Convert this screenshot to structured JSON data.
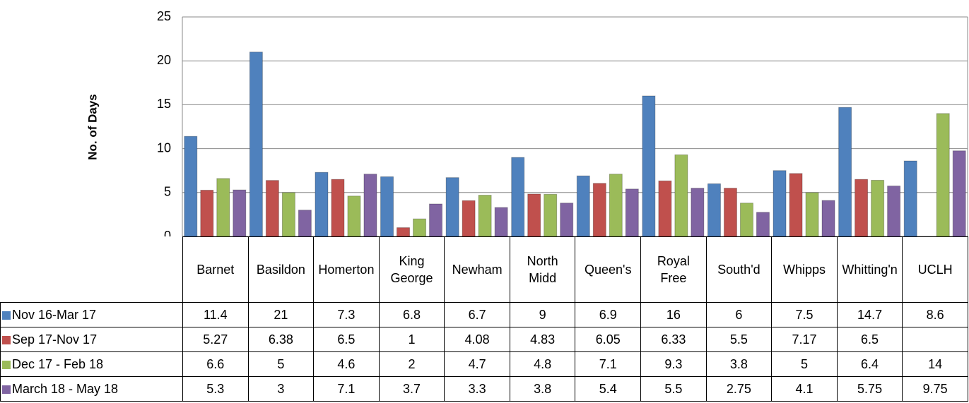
{
  "chart_data": {
    "type": "bar",
    "ylabel": "No. of Days",
    "categories": [
      "Barnet",
      "Basildon",
      "Homerton",
      "King George",
      "Newham",
      "North Midd",
      "Queen's",
      "Royal Free",
      "South'd",
      "Whipps",
      "Whitting'n",
      "UCLH"
    ],
    "series": [
      {
        "name": "Nov 16-Mar 17",
        "color": "#4f81bd",
        "values": [
          11.4,
          21,
          7.3,
          6.8,
          6.7,
          9,
          6.9,
          16,
          6,
          7.5,
          14.7,
          8.6
        ]
      },
      {
        "name": "Sep 17-Nov 17",
        "color": "#c0504d",
        "values": [
          5.27,
          6.38,
          6.5,
          1,
          4.08,
          4.83,
          6.05,
          6.33,
          5.5,
          7.17,
          6.5,
          null
        ]
      },
      {
        "name": "Dec 17 - Feb 18",
        "color": "#9bbb59",
        "values": [
          6.6,
          5,
          4.6,
          2,
          4.7,
          4.8,
          7.1,
          9.3,
          3.8,
          5,
          6.4,
          14
        ]
      },
      {
        "name": "March 18 - May 18",
        "color": "#8064a2",
        "values": [
          5.3,
          3,
          7.1,
          3.7,
          3.3,
          3.8,
          5.4,
          5.5,
          2.75,
          4.1,
          5.75,
          9.75
        ]
      }
    ],
    "ylim": [
      0,
      25
    ],
    "yticks": [
      0,
      5,
      10,
      15,
      20,
      25
    ],
    "grid": true
  }
}
